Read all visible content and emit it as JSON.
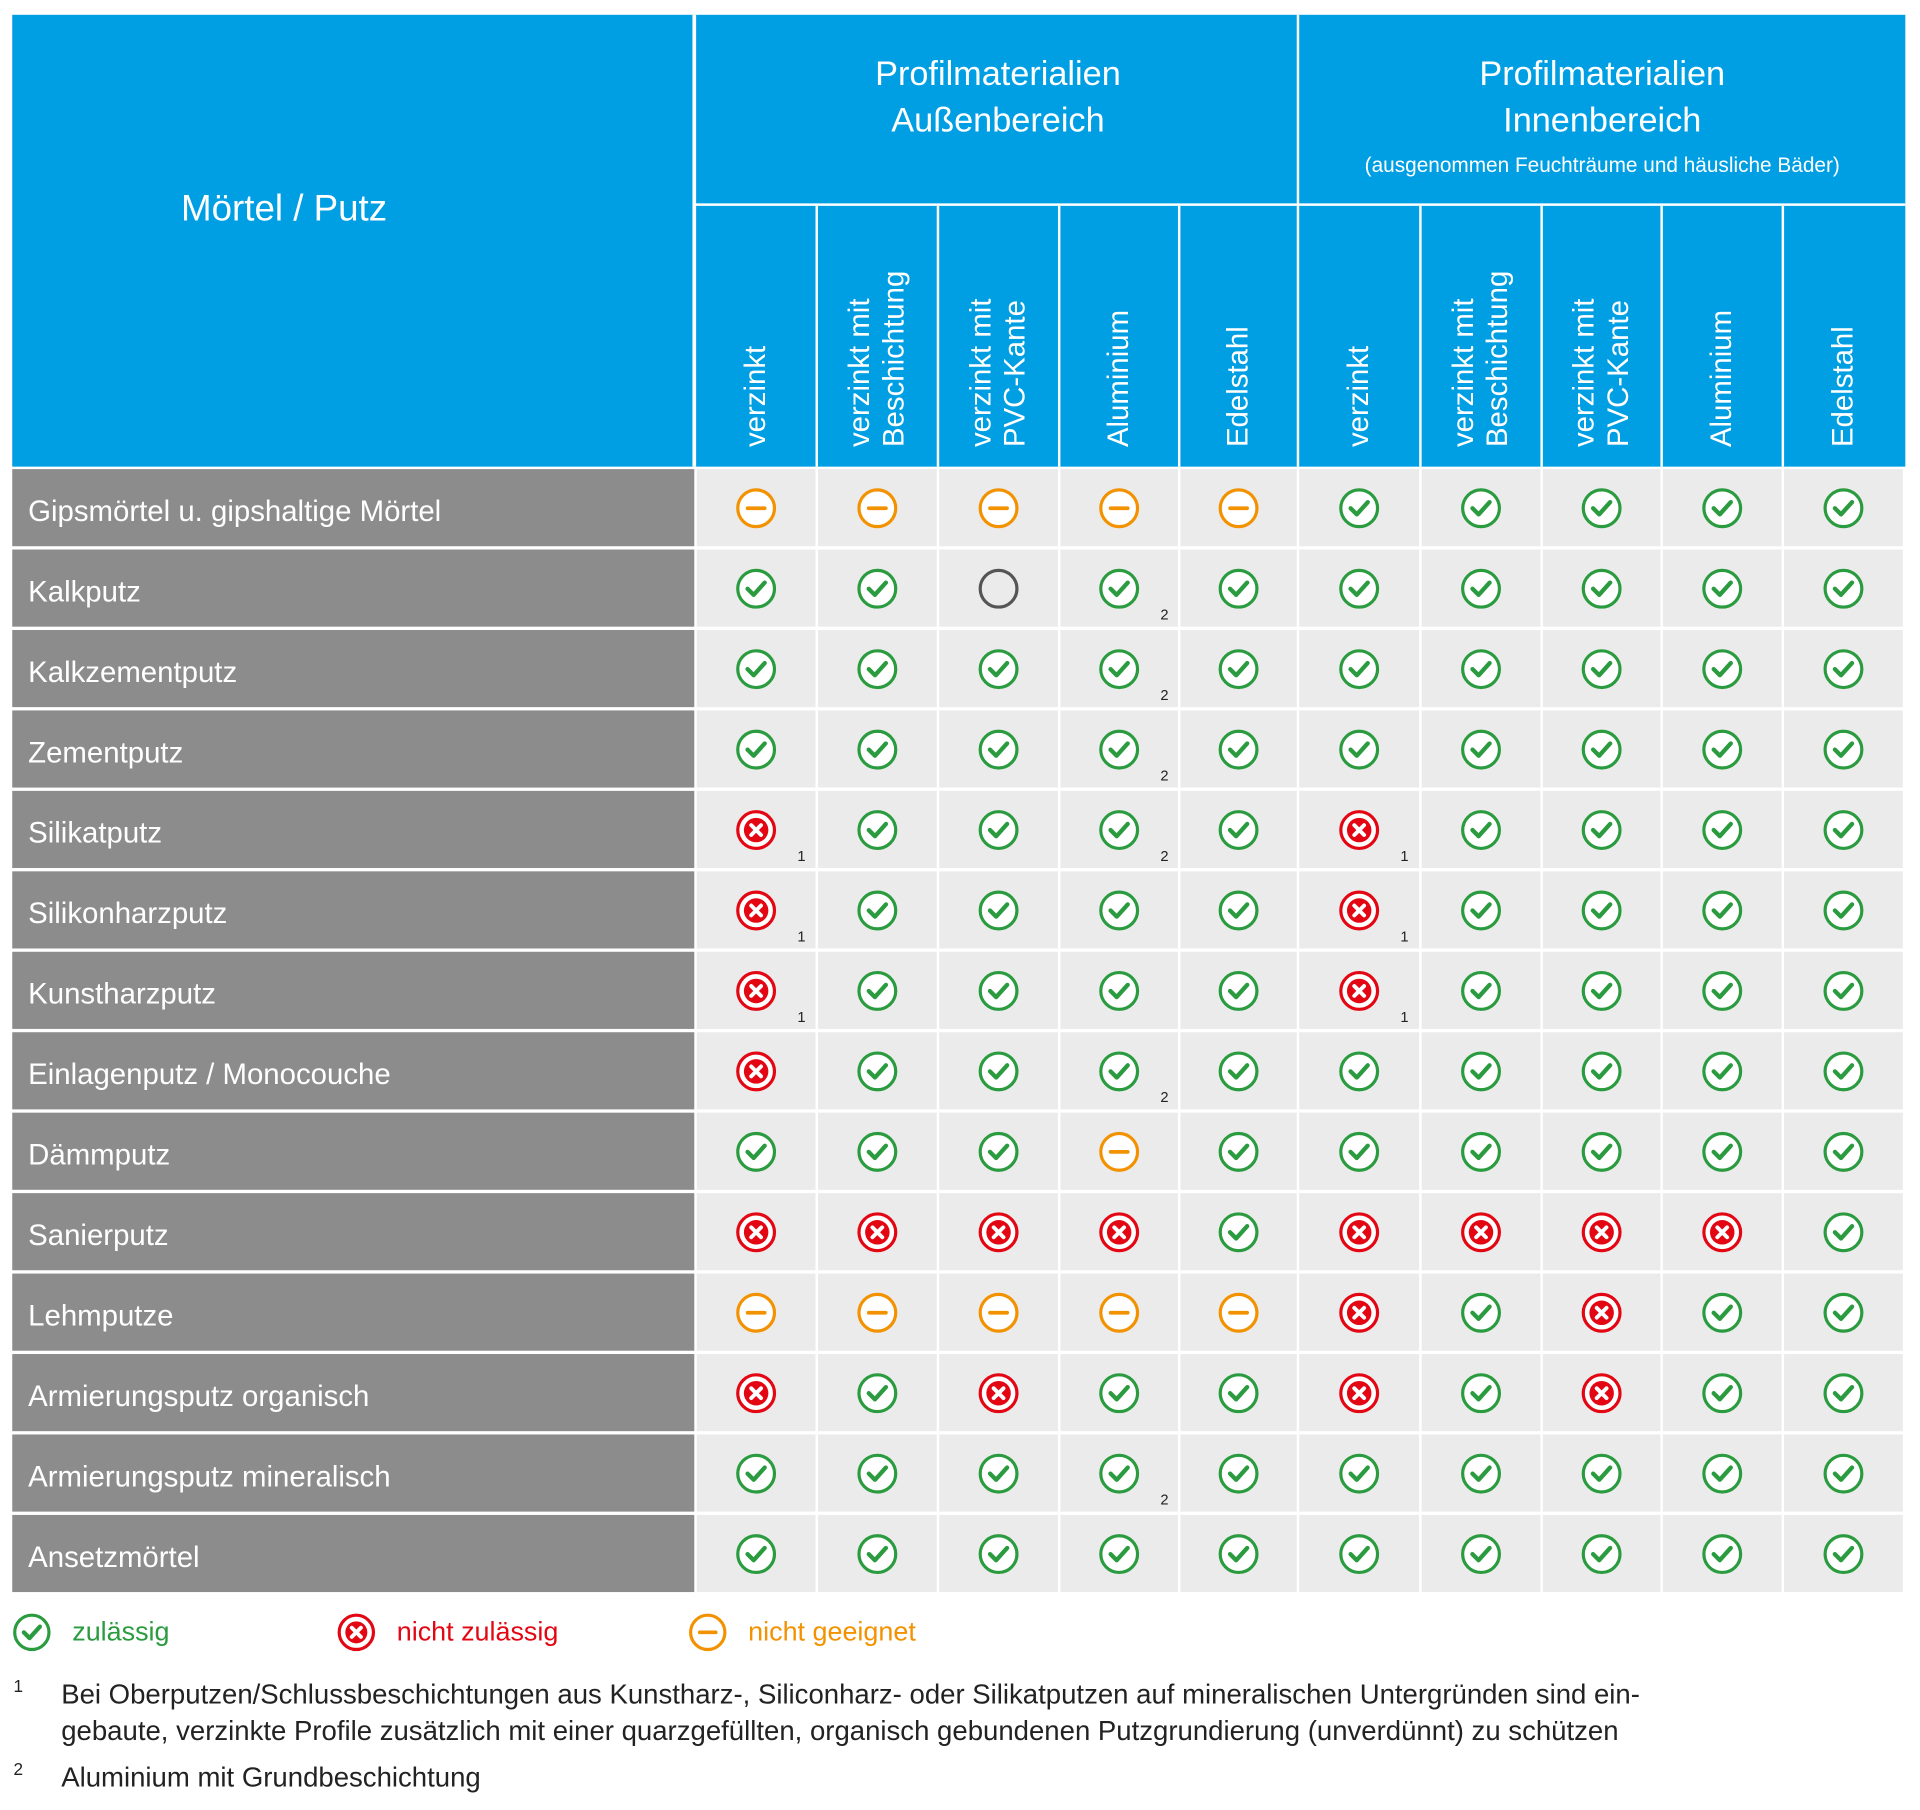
{
  "header": {
    "corner": "Mörtel / Putz",
    "groups": [
      {
        "lines": [
          "Profilmaterialien",
          "Außenbereich"
        ],
        "note": null
      },
      {
        "lines": [
          "Profilmaterialien",
          "Innenbereich"
        ],
        "note": "(ausgenommen Feuchträume und häusliche Bäder)"
      }
    ],
    "columns": [
      [
        "verzinkt"
      ],
      [
        "verzinkt mit",
        "Beschichtung"
      ],
      [
        "verzinkt mit",
        "PVC-Kante"
      ],
      [
        "Aluminium"
      ],
      [
        "Edelstahl"
      ],
      [
        "verzinkt"
      ],
      [
        "verzinkt mit",
        "Beschichtung"
      ],
      [
        "verzinkt mit",
        "PVC-Kante"
      ],
      [
        "Aluminium"
      ],
      [
        "Edelstahl"
      ]
    ]
  },
  "rows": [
    {
      "label": "Gipsmörtel u. gipshaltige Mörtel",
      "cells": [
        "nicht geeignet",
        "nicht geeignet",
        "nicht geeignet",
        "nicht geeignet",
        "nicht geeignet",
        "zulässig",
        "zulässig",
        "zulässig",
        "zulässig",
        "zulässig"
      ],
      "notes": [
        null,
        null,
        null,
        null,
        null,
        null,
        null,
        null,
        null,
        null
      ]
    },
    {
      "label": "Kalkputz",
      "cells": [
        "zulässig",
        "zulässig",
        null,
        "zulässig",
        "zulässig",
        "zulässig",
        "zulässig",
        "zulässig",
        "zulässig",
        "zulässig"
      ],
      "notes": [
        null,
        null,
        null,
        "2",
        null,
        null,
        null,
        null,
        null,
        null
      ]
    },
    {
      "label": "Kalkzementputz",
      "cells": [
        "zulässig",
        "zulässig",
        "zulässig",
        "zulässig",
        "zulässig",
        "zulässig",
        "zulässig",
        "zulässig",
        "zulässig",
        "zulässig"
      ],
      "notes": [
        null,
        null,
        null,
        "2",
        null,
        null,
        null,
        null,
        null,
        null
      ]
    },
    {
      "label": "Zementputz",
      "cells": [
        "zulässig",
        "zulässig",
        "zulässig",
        "zulässig",
        "zulässig",
        "zulässig",
        "zulässig",
        "zulässig",
        "zulässig",
        "zulässig"
      ],
      "notes": [
        null,
        null,
        null,
        "2",
        null,
        null,
        null,
        null,
        null,
        null
      ]
    },
    {
      "label": "Silikatputz",
      "cells": [
        "nicht zulässig",
        "zulässig",
        "zulässig",
        "zulässig",
        "zulässig",
        "nicht zulässig",
        "zulässig",
        "zulässig",
        "zulässig",
        "zulässig"
      ],
      "notes": [
        "1",
        null,
        null,
        "2",
        null,
        "1",
        null,
        null,
        null,
        null
      ]
    },
    {
      "label": "Silikonharzputz",
      "cells": [
        "nicht zulässig",
        "zulässig",
        "zulässig",
        "zulässig",
        "zulässig",
        "nicht zulässig",
        "zulässig",
        "zulässig",
        "zulässig",
        "zulässig"
      ],
      "notes": [
        "1",
        null,
        null,
        null,
        null,
        "1",
        null,
        null,
        null,
        null
      ]
    },
    {
      "label": "Kunstharzputz",
      "cells": [
        "nicht zulässig",
        "zulässig",
        "zulässig",
        "zulässig",
        "zulässig",
        "nicht zulässig",
        "zulässig",
        "zulässig",
        "zulässig",
        "zulässig"
      ],
      "notes": [
        "1",
        null,
        null,
        null,
        null,
        "1",
        null,
        null,
        null,
        null
      ]
    },
    {
      "label": "Einlagenputz / Monocouche",
      "cells": [
        "nicht zulässig",
        "zulässig",
        "zulässig",
        "zulässig",
        "zulässig",
        "zulässig",
        "zulässig",
        "zulässig",
        "zulässig",
        "zulässig"
      ],
      "notes": [
        null,
        null,
        null,
        "2",
        null,
        null,
        null,
        null,
        null,
        null
      ]
    },
    {
      "label": "Dämmputz",
      "cells": [
        "zulässig",
        "zulässig",
        "zulässig",
        "nicht geeignet",
        "zulässig",
        "zulässig",
        "zulässig",
        "zulässig",
        "zulässig",
        "zulässig"
      ],
      "notes": [
        null,
        null,
        null,
        null,
        null,
        null,
        null,
        null,
        null,
        null
      ]
    },
    {
      "label": "Sanierputz",
      "cells": [
        "nicht zulässig",
        "nicht zulässig",
        "nicht zulässig",
        "nicht zulässig",
        "zulässig",
        "nicht zulässig",
        "nicht zulässig",
        "nicht zulässig",
        "nicht zulässig",
        "zulässig"
      ],
      "notes": [
        null,
        null,
        null,
        null,
        null,
        null,
        null,
        null,
        null,
        null
      ]
    },
    {
      "label": "Lehmputze",
      "cells": [
        "nicht geeignet",
        "nicht geeignet",
        "nicht geeignet",
        "nicht geeignet",
        "nicht geeignet",
        "nicht zulässig",
        "zulässig",
        "nicht zulässig",
        "zulässig",
        "zulässig"
      ],
      "notes": [
        null,
        null,
        null,
        null,
        null,
        null,
        null,
        null,
        null,
        null
      ]
    },
    {
      "label": "Armierungsputz organisch",
      "cells": [
        "nicht zulässig",
        "zulässig",
        "nicht zulässig",
        "zulässig",
        "zulässig",
        "nicht zulässig",
        "zulässig",
        "nicht zulässig",
        "zulässig",
        "zulässig"
      ],
      "notes": [
        null,
        null,
        null,
        null,
        null,
        null,
        null,
        null,
        null,
        null
      ]
    },
    {
      "label": "Armierungsputz mineralisch",
      "cells": [
        "zulässig",
        "zulässig",
        "zulässig",
        "zulässig",
        "zulässig",
        "zulässig",
        "zulässig",
        "zulässig",
        "zulässig",
        "zulässig"
      ],
      "notes": [
        null,
        null,
        null,
        "2",
        null,
        null,
        null,
        null,
        null,
        null
      ]
    },
    {
      "label": "Ansetzmörtel",
      "cells": [
        "zulässig",
        "zulässig",
        "zulässig",
        "zulässig",
        "zulässig",
        "zulässig",
        "zulässig",
        "zulässig",
        "zulässig",
        "zulässig"
      ],
      "notes": [
        null,
        null,
        null,
        null,
        null,
        null,
        null,
        null,
        null,
        null
      ]
    }
  ],
  "legend": [
    "zulässig",
    "nicht zulässig",
    "nicht geeignet"
  ],
  "footnotes": [
    {
      "marker": "1",
      "lines": [
        "Bei Oberputzen/Schlussbeschichtungen aus Kunstharz-, Siliconharz- oder Silikatputzen auf mineralischen Untergründen sind ein-",
        "gebaute, verzinkte Profile zusätzlich mit einer quarzgefüllten, organisch gebundenen Putzgrundierung (unverdünnt) zu schützen"
      ]
    },
    {
      "marker": "2",
      "lines": [
        "Aluminium mit Grundbeschichtung"
      ]
    }
  ]
}
